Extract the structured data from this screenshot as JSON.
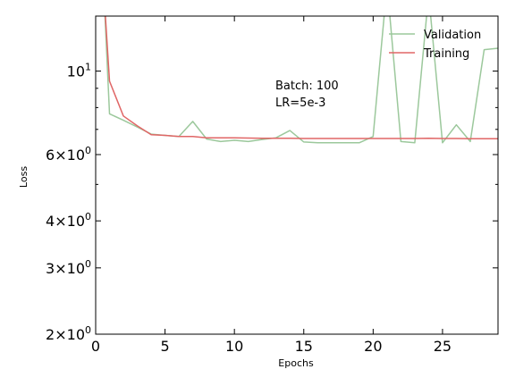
{
  "chart_data": {
    "type": "line",
    "title": "",
    "xlabel": "Epochs",
    "ylabel": "Loss",
    "xlim": [
      0,
      29
    ],
    "ylim": [
      2,
      14
    ],
    "yscale": "log",
    "grid": false,
    "legend_position": "top-right",
    "x_ticks": [
      0,
      5,
      10,
      15,
      20,
      25
    ],
    "x_tick_labels": [
      "0",
      "5",
      "10",
      "15",
      "20",
      "25"
    ],
    "y_ticks": [
      {
        "value": 10,
        "mantissa": "10",
        "exp": "1"
      },
      {
        "value": 6,
        "mantissa": "6×10",
        "exp": "0"
      },
      {
        "value": 4,
        "mantissa": "4×10",
        "exp": "0"
      },
      {
        "value": 3,
        "mantissa": "3×10",
        "exp": "0"
      },
      {
        "value": 2,
        "mantissa": "2×10",
        "exp": "0"
      }
    ],
    "y_minor_ticks": [
      5,
      7,
      8,
      9
    ],
    "annotation": [
      "Batch: 100",
      "LR=5e-3"
    ],
    "series": [
      {
        "name": "Validation",
        "color": "#9cc89c",
        "x": [
          0.6,
          1,
          2,
          3,
          4,
          5,
          6,
          7,
          8,
          9,
          10,
          11,
          12,
          13,
          14,
          15,
          16,
          17,
          18,
          19,
          20,
          21,
          22,
          23,
          24,
          25,
          26,
          27,
          28,
          29
        ],
        "y": [
          16,
          7.7,
          7.4,
          7.1,
          6.8,
          6.75,
          6.7,
          7.35,
          6.6,
          6.5,
          6.55,
          6.5,
          6.58,
          6.65,
          6.95,
          6.48,
          6.45,
          6.45,
          6.45,
          6.45,
          6.7,
          17,
          6.5,
          6.45,
          16,
          6.45,
          7.2,
          6.5,
          11.4,
          11.5
        ]
      },
      {
        "name": "Training",
        "color": "#e06666",
        "x": [
          0.6,
          1,
          2,
          3,
          4,
          5,
          6,
          7,
          8,
          9,
          10,
          11,
          12,
          13,
          14,
          15,
          16,
          17,
          18,
          19,
          20,
          21,
          22,
          23,
          24,
          25,
          26,
          27,
          28,
          29
        ],
        "y": [
          16,
          9.4,
          7.6,
          7.15,
          6.78,
          6.75,
          6.7,
          6.7,
          6.65,
          6.65,
          6.65,
          6.64,
          6.63,
          6.63,
          6.63,
          6.62,
          6.62,
          6.62,
          6.62,
          6.62,
          6.62,
          6.62,
          6.62,
          6.62,
          6.63,
          6.62,
          6.62,
          6.61,
          6.61,
          6.61
        ]
      }
    ]
  }
}
